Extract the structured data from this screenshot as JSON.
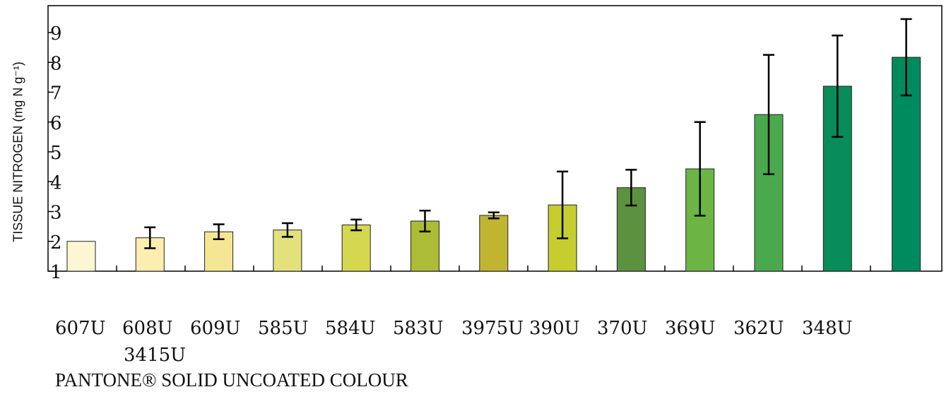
{
  "chart_data": {
    "type": "bar",
    "ylabel": "TISSUE NITROGEN (mg N g⁻¹)",
    "xlabel": "PANTONE® SOLID UNCOATED COLOUR",
    "ylim": [
      1,
      9.9
    ],
    "yticks": [
      1,
      2,
      3,
      4,
      5,
      6,
      7,
      8,
      9
    ],
    "categories": [
      "607U",
      "608U",
      "609U",
      "585U",
      "584U",
      "583U",
      "3975U",
      "390U",
      "370U",
      "369U",
      "362U",
      "348U",
      "3415U"
    ],
    "values": [
      2.0,
      2.12,
      2.32,
      2.38,
      2.55,
      2.68,
      2.87,
      3.22,
      3.8,
      4.43,
      6.25,
      7.2,
      8.17
    ],
    "errors": [
      0.0,
      0.35,
      0.25,
      0.23,
      0.18,
      0.35,
      0.1,
      1.12,
      0.6,
      1.57,
      2.0,
      1.7,
      1.28
    ],
    "colors": [
      "#fdf6d3",
      "#fbeeb0",
      "#f5e694",
      "#e3e17c",
      "#d5d84e",
      "#acbc36",
      "#c1b431",
      "#c5ce2e",
      "#5c923f",
      "#6cb545",
      "#4aa94d",
      "#078c5a",
      "#008b5e"
    ],
    "grid": false,
    "legend": "none"
  }
}
